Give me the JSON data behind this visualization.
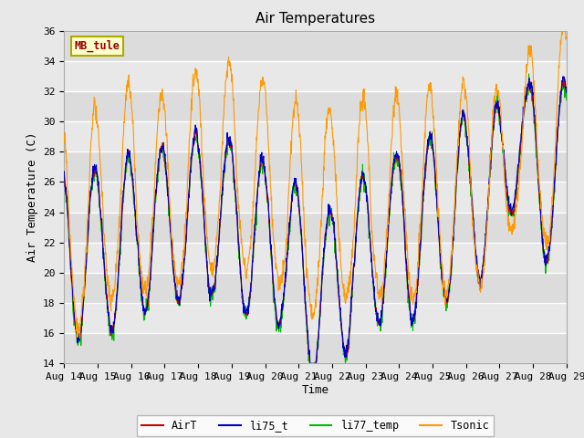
{
  "title": "Air Temperatures",
  "ylabel": "Air Temperature (C)",
  "xlabel": "Time",
  "annotation": "MB_tule",
  "ylim": [
    14,
    36
  ],
  "xtick_labels": [
    "Aug 14",
    "Aug 15",
    "Aug 16",
    "Aug 17",
    "Aug 18",
    "Aug 19",
    "Aug 20",
    "Aug 21",
    "Aug 22",
    "Aug 23",
    "Aug 24",
    "Aug 25",
    "Aug 26",
    "Aug 27",
    "Aug 28",
    "Aug 29"
  ],
  "legend_labels": [
    "AirT",
    "li75_t",
    "li77_temp",
    "Tsonic"
  ],
  "colors": {
    "AirT": "#cc0000",
    "li75_t": "#0000cc",
    "li77_temp": "#00bb00",
    "Tsonic": "#ff9900"
  },
  "background_color": "#e8e8e8",
  "plot_bg": "#f0f0f0",
  "grid_color": "#c8c8c8",
  "title_fontsize": 11,
  "axis_fontsize": 9,
  "tick_fontsize": 8,
  "yticks": [
    14,
    16,
    18,
    20,
    22,
    24,
    26,
    28,
    30,
    32,
    34,
    36
  ]
}
